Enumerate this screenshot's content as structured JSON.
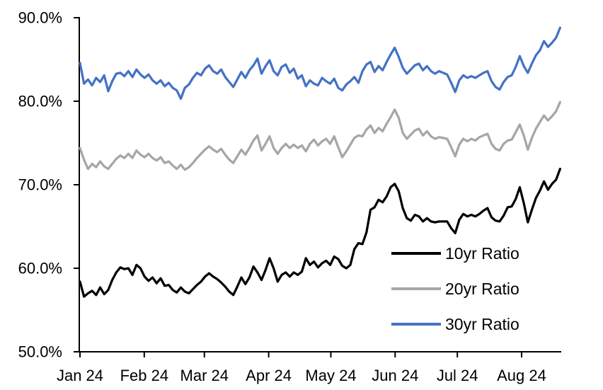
{
  "chart": {
    "y_axis": {
      "tick_labels": [
        "90.0%",
        "80.0%",
        "70.0%",
        "60.0%",
        "50.0%"
      ],
      "tick_values": [
        90,
        80,
        70,
        60,
        50
      ]
    },
    "x_axis": {
      "tick_labels": [
        "Jan 24",
        "Feb 24",
        "Mar 24",
        "Apr 24",
        "May 24",
        "Jun 24",
        "Jul 24",
        "Aug 24"
      ]
    },
    "legend": {
      "entries": [
        "10yr Ratio",
        "20yr Ratio",
        "30yr Ratio"
      ],
      "colors": [
        "#000000",
        "#A6A6A6",
        "#4472C4"
      ]
    },
    "text_color": "#000000",
    "axis_color": "#000000",
    "background_color": "#ffffff"
  },
  "chart_data": {
    "type": "line",
    "title": "",
    "xlabel": "",
    "ylabel": "",
    "ylim": [
      50,
      90
    ],
    "y_tick_step": 10,
    "y_tick_format": "0.0%",
    "grid": false,
    "legend_position": "inside-lower-right",
    "x_tick_labels": [
      "Jan 24",
      "Feb 24",
      "Mar 24",
      "Apr 24",
      "May 24",
      "Jun 24",
      "Jul 24",
      "Aug 24"
    ],
    "x_month_day_offsets": [
      0,
      31,
      60,
      91,
      121,
      152,
      182,
      213
    ],
    "x_span_days": 231.5,
    "series": [
      {
        "name": "10yr Ratio",
        "color": "#000000",
        "values": [
          58.4,
          56.6,
          57.0,
          57.3,
          56.8,
          57.7,
          56.9,
          57.4,
          58.6,
          59.5,
          60.1,
          59.9,
          60.0,
          59.2,
          60.4,
          60.0,
          59.0,
          58.5,
          58.9,
          58.2,
          58.8,
          57.9,
          58.0,
          57.4,
          57.1,
          57.7,
          57.2,
          57.0,
          57.5,
          58.0,
          58.4,
          59.0,
          59.4,
          59.0,
          58.7,
          58.3,
          57.8,
          57.2,
          56.8,
          57.8,
          58.9,
          58.1,
          58.9,
          60.2,
          59.5,
          58.6,
          59.8,
          61.2,
          60.0,
          58.4,
          59.2,
          59.5,
          59.0,
          59.5,
          59.2,
          59.6,
          61.2,
          60.4,
          60.8,
          60.1,
          60.6,
          60.9,
          60.4,
          61.4,
          61.1,
          60.3,
          60.0,
          60.4,
          62.3,
          63.0,
          62.9,
          64.3,
          67.0,
          67.3,
          68.2,
          67.9,
          68.6,
          69.7,
          70.1,
          69.2,
          67.2,
          66.0,
          65.7,
          66.4,
          66.2,
          65.6,
          66.0,
          65.6,
          65.5,
          65.6,
          65.6,
          65.6,
          64.8,
          64.2,
          65.8,
          66.5,
          66.2,
          66.4,
          66.2,
          66.5,
          66.9,
          67.2,
          66.1,
          65.7,
          65.6,
          66.3,
          67.3,
          67.4,
          68.3,
          69.7,
          67.8,
          65.5,
          67.0,
          68.4,
          69.3,
          70.4,
          69.4,
          70.1,
          70.6,
          71.9
        ]
      },
      {
        "name": "20yr Ratio",
        "color": "#A6A6A6",
        "values": [
          74.4,
          73.0,
          71.9,
          72.5,
          72.1,
          72.8,
          72.2,
          71.9,
          72.5,
          73.1,
          73.5,
          73.2,
          73.7,
          73.2,
          74.1,
          73.6,
          73.3,
          73.7,
          73.2,
          72.9,
          73.3,
          72.6,
          72.8,
          72.3,
          71.9,
          72.4,
          71.8,
          72.1,
          72.6,
          73.2,
          73.7,
          74.2,
          74.6,
          74.2,
          73.9,
          74.3,
          73.6,
          73.0,
          72.6,
          73.4,
          74.2,
          73.6,
          74.4,
          75.3,
          75.9,
          74.1,
          74.9,
          75.8,
          74.4,
          73.7,
          74.4,
          74.9,
          74.4,
          74.8,
          74.4,
          74.7,
          74.0,
          74.9,
          75.4,
          74.7,
          75.2,
          75.5,
          74.9,
          75.8,
          74.5,
          73.3,
          74.0,
          74.8,
          75.6,
          75.9,
          75.8,
          76.6,
          77.1,
          76.2,
          76.8,
          76.4,
          77.3,
          78.1,
          79.0,
          78.0,
          76.2,
          75.5,
          76.0,
          76.5,
          76.7,
          75.9,
          76.4,
          75.8,
          75.5,
          75.7,
          75.6,
          75.5,
          74.5,
          73.4,
          74.8,
          75.5,
          75.2,
          75.5,
          75.3,
          75.7,
          75.9,
          76.1,
          74.9,
          74.3,
          74.1,
          74.9,
          75.3,
          75.4,
          76.3,
          77.2,
          75.9,
          74.2,
          75.6,
          76.7,
          77.5,
          78.3,
          77.7,
          78.2,
          78.8,
          79.9
        ]
      },
      {
        "name": "30yr Ratio",
        "color": "#4472C4",
        "values": [
          84.6,
          82.1,
          82.6,
          81.9,
          82.8,
          82.3,
          83.1,
          81.2,
          82.4,
          83.3,
          83.4,
          83.0,
          83.6,
          82.9,
          83.8,
          83.2,
          82.8,
          83.2,
          82.5,
          82.1,
          82.5,
          81.8,
          82.2,
          81.6,
          81.3,
          80.3,
          81.6,
          82.0,
          82.8,
          83.4,
          83.1,
          83.9,
          84.3,
          83.6,
          83.3,
          83.8,
          82.9,
          82.3,
          81.7,
          82.6,
          83.5,
          82.8,
          83.7,
          84.3,
          85.1,
          83.3,
          84.2,
          84.9,
          83.6,
          83.1,
          84.1,
          84.4,
          83.4,
          83.9,
          82.7,
          83.1,
          81.8,
          82.5,
          82.1,
          81.9,
          82.8,
          82.4,
          82.1,
          82.7,
          81.6,
          81.3,
          82.0,
          82.4,
          82.9,
          82.2,
          83.6,
          84.4,
          84.7,
          83.5,
          84.2,
          83.7,
          84.7,
          85.6,
          86.4,
          85.3,
          84.0,
          83.3,
          83.8,
          84.3,
          84.5,
          83.7,
          84.2,
          83.6,
          83.3,
          83.6,
          83.4,
          83.2,
          82.2,
          81.1,
          82.5,
          83.1,
          82.8,
          83.0,
          82.8,
          83.1,
          83.4,
          83.6,
          82.4,
          81.7,
          81.4,
          82.3,
          82.9,
          83.1,
          84.1,
          85.4,
          84.2,
          83.4,
          84.5,
          85.5,
          86.1,
          87.2,
          86.5,
          87.0,
          87.6,
          88.8
        ]
      }
    ]
  }
}
